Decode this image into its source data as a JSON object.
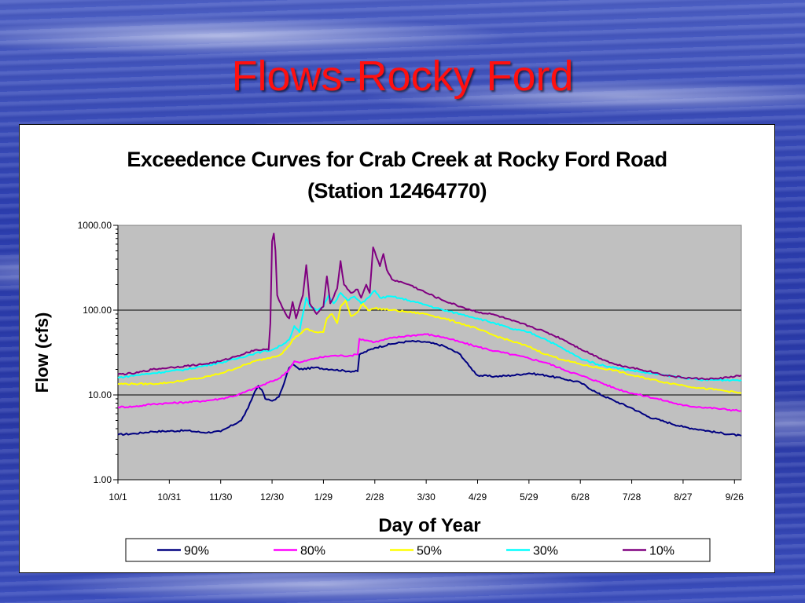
{
  "slide": {
    "title": "Flows-Rocky Ford"
  },
  "chart_data": {
    "type": "line",
    "title_line1": "Exceedence Curves for Crab Creek at Rocky Ford Road",
    "title_line2": "(Station 12464770)",
    "xlabel": "Day of Year",
    "ylabel": "Flow (cfs)",
    "y_scale": "log",
    "ylim": [
      1,
      1000
    ],
    "y_ticks": [
      "1.00",
      "10.00",
      "100.00",
      "1000.00"
    ],
    "x_ticks": [
      "10/1",
      "10/31",
      "11/30",
      "12/30",
      "1/29",
      "2/28",
      "3/30",
      "4/29",
      "5/29",
      "6/28",
      "7/28",
      "8/27",
      "9/26"
    ],
    "x_tick_days": [
      0,
      30,
      60,
      90,
      120,
      150,
      180,
      210,
      240,
      270,
      300,
      330,
      360
    ],
    "xlim": [
      0,
      364
    ],
    "grid": "horizontal major lines",
    "plot_background": "#c0c0c0",
    "legend_position": "bottom",
    "series": [
      {
        "name": "90%",
        "color": "#000080",
        "points": [
          [
            0,
            3.4
          ],
          [
            10,
            3.5
          ],
          [
            20,
            3.7
          ],
          [
            40,
            3.8
          ],
          [
            50,
            3.6
          ],
          [
            60,
            3.7
          ],
          [
            65,
            4.2
          ],
          [
            72,
            5.0
          ],
          [
            76,
            7.0
          ],
          [
            80,
            11.0
          ],
          [
            82,
            12.8
          ],
          [
            84,
            11.5
          ],
          [
            86,
            9.0
          ],
          [
            90,
            8.5
          ],
          [
            94,
            9.5
          ],
          [
            96,
            12.0
          ],
          [
            98,
            16.0
          ],
          [
            100,
            21.0
          ],
          [
            102,
            23.0
          ],
          [
            106,
            20.0
          ],
          [
            115,
            21.0
          ],
          [
            125,
            20.0
          ],
          [
            135,
            19.0
          ],
          [
            140,
            19.0
          ],
          [
            141,
            30.0
          ],
          [
            150,
            36.0
          ],
          [
            160,
            40.0
          ],
          [
            170,
            43.0
          ],
          [
            180,
            42.0
          ],
          [
            190,
            38.0
          ],
          [
            200,
            30.0
          ],
          [
            205,
            22.0
          ],
          [
            210,
            17.0
          ],
          [
            220,
            16.5
          ],
          [
            230,
            17.0
          ],
          [
            240,
            18.0
          ],
          [
            250,
            17.0
          ],
          [
            260,
            15.5
          ],
          [
            270,
            14.0
          ],
          [
            280,
            10.5
          ],
          [
            290,
            8.5
          ],
          [
            300,
            7.0
          ],
          [
            310,
            5.5
          ],
          [
            320,
            4.8
          ],
          [
            330,
            4.2
          ],
          [
            340,
            3.9
          ],
          [
            350,
            3.6
          ],
          [
            364,
            3.3
          ]
        ]
      },
      {
        "name": "80%",
        "color": "#ff00ff",
        "points": [
          [
            0,
            7.2
          ],
          [
            10,
            7.3
          ],
          [
            20,
            7.8
          ],
          [
            30,
            8.0
          ],
          [
            40,
            8.2
          ],
          [
            50,
            8.5
          ],
          [
            60,
            9.0
          ],
          [
            70,
            10.0
          ],
          [
            80,
            12.0
          ],
          [
            90,
            14.5
          ],
          [
            95,
            16.0
          ],
          [
            100,
            20.0
          ],
          [
            103,
            25.0
          ],
          [
            106,
            24.0
          ],
          [
            115,
            27.0
          ],
          [
            125,
            29.0
          ],
          [
            135,
            29.0
          ],
          [
            140,
            30.0
          ],
          [
            141,
            46.0
          ],
          [
            150,
            42.0
          ],
          [
            160,
            47.0
          ],
          [
            170,
            50.0
          ],
          [
            180,
            52.0
          ],
          [
            190,
            48.0
          ],
          [
            200,
            42.0
          ],
          [
            210,
            37.0
          ],
          [
            220,
            33.0
          ],
          [
            230,
            30.0
          ],
          [
            240,
            27.0
          ],
          [
            250,
            24.0
          ],
          [
            260,
            20.0
          ],
          [
            270,
            17.0
          ],
          [
            280,
            14.5
          ],
          [
            290,
            12.0
          ],
          [
            300,
            10.5
          ],
          [
            310,
            9.5
          ],
          [
            320,
            8.5
          ],
          [
            330,
            7.5
          ],
          [
            340,
            7.2
          ],
          [
            350,
            6.9
          ],
          [
            364,
            6.5
          ]
        ]
      },
      {
        "name": "50%",
        "color": "#ffff00",
        "points": [
          [
            0,
            13.5
          ],
          [
            10,
            13.5
          ],
          [
            20,
            13.5
          ],
          [
            30,
            14.0
          ],
          [
            40,
            15.0
          ],
          [
            50,
            16.0
          ],
          [
            60,
            18.0
          ],
          [
            70,
            21.0
          ],
          [
            80,
            25.0
          ],
          [
            90,
            28.0
          ],
          [
            95,
            30.0
          ],
          [
            100,
            38.0
          ],
          [
            102,
            45.0
          ],
          [
            106,
            52.0
          ],
          [
            110,
            60.0
          ],
          [
            115,
            55.0
          ],
          [
            120,
            55.0
          ],
          [
            122,
            80.0
          ],
          [
            125,
            90.0
          ],
          [
            128,
            70.0
          ],
          [
            130,
            110.0
          ],
          [
            133,
            130.0
          ],
          [
            136,
            85.0
          ],
          [
            140,
            95.0
          ],
          [
            143,
            120.0
          ],
          [
            146,
            100.0
          ],
          [
            150,
            105.0
          ],
          [
            160,
            100.0
          ],
          [
            170,
            95.0
          ],
          [
            180,
            90.0
          ],
          [
            190,
            80.0
          ],
          [
            200,
            70.0
          ],
          [
            210,
            60.0
          ],
          [
            220,
            50.0
          ],
          [
            230,
            43.0
          ],
          [
            240,
            37.0
          ],
          [
            250,
            30.0
          ],
          [
            260,
            26.0
          ],
          [
            270,
            23.0
          ],
          [
            280,
            21.0
          ],
          [
            290,
            19.5
          ],
          [
            300,
            17.0
          ],
          [
            310,
            15.5
          ],
          [
            320,
            14.0
          ],
          [
            330,
            13.0
          ],
          [
            340,
            12.0
          ],
          [
            350,
            11.5
          ],
          [
            364,
            10.5
          ]
        ]
      },
      {
        "name": "30%",
        "color": "#00ffff",
        "points": [
          [
            0,
            16.0
          ],
          [
            10,
            17.0
          ],
          [
            20,
            18.0
          ],
          [
            30,
            19.0
          ],
          [
            40,
            20.0
          ],
          [
            50,
            22.0
          ],
          [
            60,
            24.0
          ],
          [
            70,
            27.0
          ],
          [
            80,
            31.0
          ],
          [
            90,
            34.0
          ],
          [
            95,
            38.0
          ],
          [
            100,
            45.0
          ],
          [
            103,
            65.0
          ],
          [
            106,
            55.0
          ],
          [
            108,
            90.0
          ],
          [
            110,
            140.0
          ],
          [
            112,
            110.0
          ],
          [
            116,
            100.0
          ],
          [
            120,
            110.0
          ],
          [
            123,
            150.0
          ],
          [
            126,
            120.0
          ],
          [
            130,
            160.0
          ],
          [
            134,
            130.0
          ],
          [
            138,
            145.0
          ],
          [
            142,
            120.0
          ],
          [
            146,
            140.0
          ],
          [
            150,
            170.0
          ],
          [
            153,
            140.0
          ],
          [
            160,
            145.0
          ],
          [
            170,
            130.0
          ],
          [
            180,
            115.0
          ],
          [
            190,
            100.0
          ],
          [
            200,
            90.0
          ],
          [
            210,
            80.0
          ],
          [
            220,
            70.0
          ],
          [
            230,
            60.0
          ],
          [
            240,
            55.0
          ],
          [
            250,
            45.0
          ],
          [
            260,
            35.0
          ],
          [
            270,
            27.0
          ],
          [
            280,
            23.0
          ],
          [
            290,
            21.0
          ],
          [
            300,
            19.5
          ],
          [
            310,
            18.0
          ],
          [
            320,
            17.0
          ],
          [
            330,
            16.0
          ],
          [
            340,
            15.0
          ],
          [
            350,
            15.0
          ],
          [
            364,
            15.0
          ]
        ]
      },
      {
        "name": "10%",
        "color": "#800080",
        "points": [
          [
            0,
            17.5
          ],
          [
            10,
            18.0
          ],
          [
            20,
            20.0
          ],
          [
            30,
            21.0
          ],
          [
            40,
            22.0
          ],
          [
            50,
            23.0
          ],
          [
            60,
            25.0
          ],
          [
            70,
            29.0
          ],
          [
            80,
            34.0
          ],
          [
            88,
            34.0
          ],
          [
            89,
            70.0
          ],
          [
            90,
            650.0
          ],
          [
            91,
            800.0
          ],
          [
            92,
            500.0
          ],
          [
            93,
            150.0
          ],
          [
            95,
            120.0
          ],
          [
            98,
            90.0
          ],
          [
            100,
            80.0
          ],
          [
            102,
            125.0
          ],
          [
            104,
            80.0
          ],
          [
            108,
            150.0
          ],
          [
            110,
            340.0
          ],
          [
            112,
            120.0
          ],
          [
            116,
            90.0
          ],
          [
            120,
            110.0
          ],
          [
            122,
            250.0
          ],
          [
            124,
            120.0
          ],
          [
            128,
            180.0
          ],
          [
            130,
            380.0
          ],
          [
            132,
            200.0
          ],
          [
            136,
            160.0
          ],
          [
            140,
            175.0
          ],
          [
            142,
            140.0
          ],
          [
            145,
            200.0
          ],
          [
            147,
            160.0
          ],
          [
            149,
            550.0
          ],
          [
            151,
            420.0
          ],
          [
            153,
            330.0
          ],
          [
            155,
            460.0
          ],
          [
            157,
            300.0
          ],
          [
            160,
            230.0
          ],
          [
            170,
            200.0
          ],
          [
            180,
            160.0
          ],
          [
            190,
            130.0
          ],
          [
            200,
            110.0
          ],
          [
            210,
            95.0
          ],
          [
            220,
            88.0
          ],
          [
            230,
            75.0
          ],
          [
            240,
            65.0
          ],
          [
            250,
            55.0
          ],
          [
            260,
            45.0
          ],
          [
            270,
            35.0
          ],
          [
            280,
            28.0
          ],
          [
            290,
            23.0
          ],
          [
            300,
            21.0
          ],
          [
            310,
            19.0
          ],
          [
            320,
            17.0
          ],
          [
            330,
            16.0
          ],
          [
            340,
            15.5
          ],
          [
            350,
            15.5
          ],
          [
            364,
            17.0
          ]
        ]
      }
    ]
  }
}
